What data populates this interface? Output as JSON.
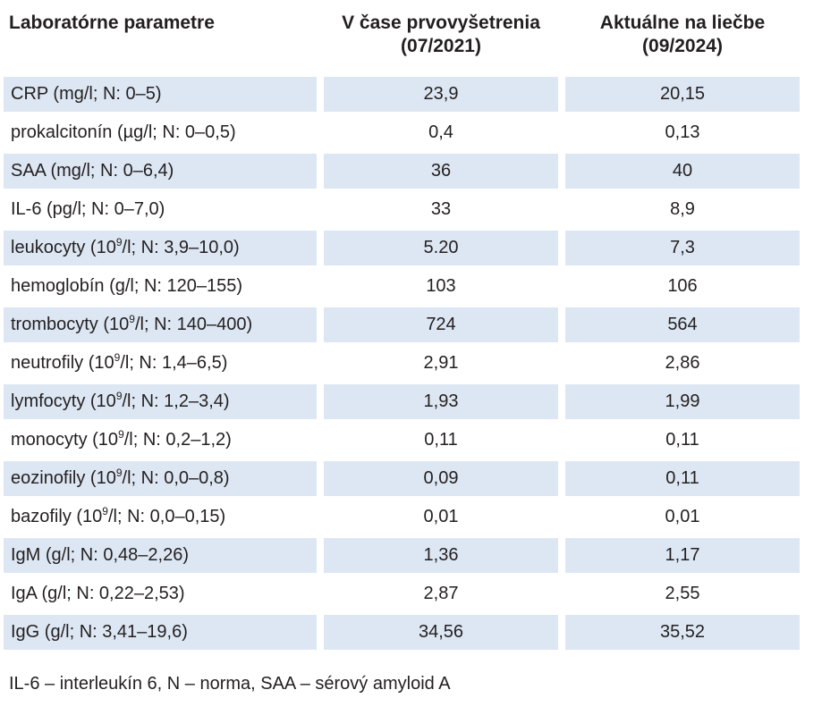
{
  "table": {
    "headers": {
      "parameter": "Laboratórne parametre",
      "initial_line1": "V čase prvovyšetrenia",
      "initial_line2": "(07/2021)",
      "current_line1": "Aktuálne na liečbe",
      "current_line2": "(09/2024)"
    },
    "rows": [
      {
        "pre": "CRP (mg/l; N: 0–5)",
        "sup": "",
        "post": "",
        "initial": "23,9",
        "current": "20,15"
      },
      {
        "pre": "prokalcitonín (µg/l; N: 0–0,5)",
        "sup": "",
        "post": "",
        "initial": "0,4",
        "current": "0,13"
      },
      {
        "pre": "SAA (mg/l; N: 0–6,4)",
        "sup": "",
        "post": "",
        "initial": "36",
        "current": "40"
      },
      {
        "pre": "IL-6 (pg/l; N: 0–7,0)",
        "sup": "",
        "post": "",
        "initial": "33",
        "current": "8,9"
      },
      {
        "pre": "leukocyty (10",
        "sup": "9",
        "post": "/l; N: 3,9–10,0)",
        "initial": "5.20",
        "current": "7,3"
      },
      {
        "pre": "hemoglobín (g/l; N: 120–155)",
        "sup": "",
        "post": "",
        "initial": "103",
        "current": "106"
      },
      {
        "pre": "trombocyty (10",
        "sup": "9",
        "post": "/l; N: 140–400)",
        "initial": "724",
        "current": "564"
      },
      {
        "pre": "neutrofily (10",
        "sup": "9",
        "post": "/l; N: 1,4–6,5)",
        "initial": "2,91",
        "current": "2,86"
      },
      {
        "pre": "lymfocyty (10",
        "sup": "9",
        "post": "/l; N: 1,2–3,4)",
        "initial": "1,93",
        "current": "1,99"
      },
      {
        "pre": "monocyty (10",
        "sup": "9",
        "post": "/l; N: 0,2–1,2)",
        "initial": "0,11",
        "current": "0,11"
      },
      {
        "pre": "eozinofily (10",
        "sup": "9",
        "post": "/l; N: 0,0–0,8)",
        "initial": "0,09",
        "current": "0,11"
      },
      {
        "pre": "bazofily (10",
        "sup": "9",
        "post": "/l; N: 0,0–0,15)",
        "initial": "0,01",
        "current": "0,01"
      },
      {
        "pre": "IgM (g/l; N: 0,48–2,26)",
        "sup": "",
        "post": "",
        "initial": "1,36",
        "current": "1,17"
      },
      {
        "pre": "IgA (g/l; N: 0,22–2,53)",
        "sup": "",
        "post": "",
        "initial": "2,87",
        "current": "2,55"
      },
      {
        "pre": "IgG (g/l; N: 3,41–19,6)",
        "sup": "",
        "post": "",
        "initial": "34,56",
        "current": "35,52"
      }
    ],
    "footnote": "IL-6 – interleukín 6, N – norma, SAA – sérový amyloid A"
  },
  "colors": {
    "row_shade": "#dde7f3",
    "text": "#231f20"
  }
}
